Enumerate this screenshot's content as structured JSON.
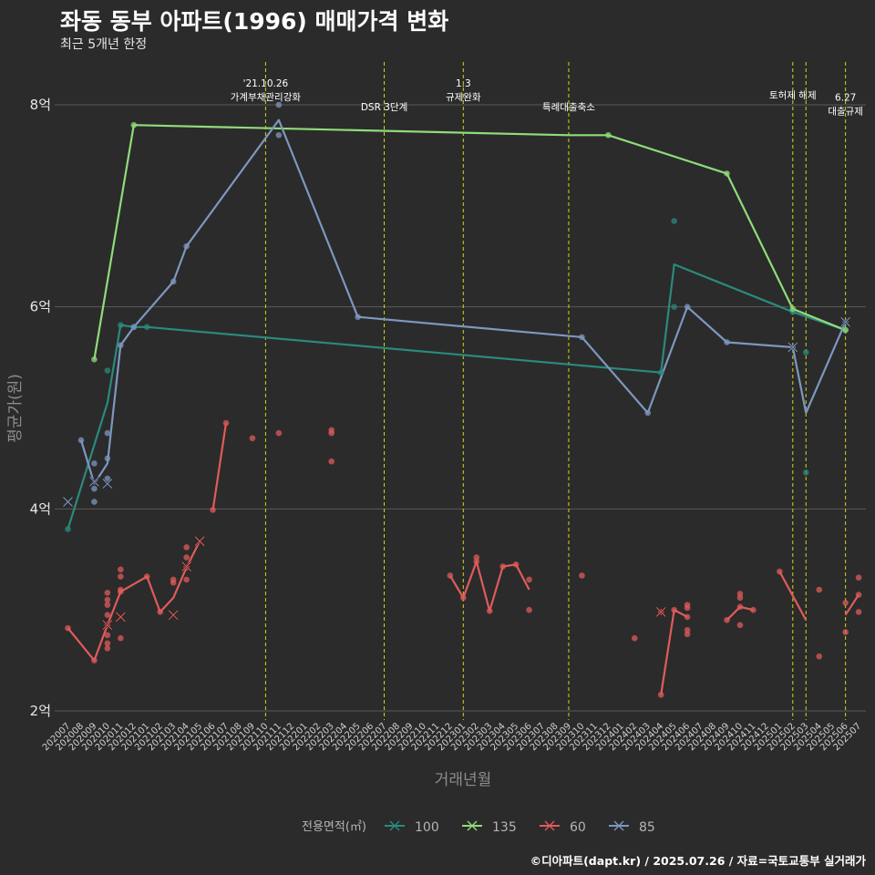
{
  "title": "좌동 동부 아파트(1996) 매매가격 변화",
  "subtitle": "최근 5개년 한정",
  "caption": "©디아파트(dapt.kr) / 2025.07.26 / 자료=국토교통부 실거래가",
  "colors": {
    "background": "#2b2b2b",
    "grid": "#5a5a5a",
    "event_line": "#d4d41c",
    "s100": "#2a8a7e",
    "s135": "#8fdc7a",
    "s60": "#e05b5b",
    "s85": "#7d97bf"
  },
  "chart_data": {
    "type": "line",
    "title": "좌동 동부 아파트(1996) 매매가격 변화",
    "xlabel": "거래년월",
    "ylabel": "평균가(원)",
    "ylim": [
      1.85,
      8.4
    ],
    "y_ticks": [
      {
        "value": 2,
        "label": "2억"
      },
      {
        "value": 4,
        "label": "4억"
      },
      {
        "value": 6,
        "label": "6억"
      },
      {
        "value": 8,
        "label": "8억"
      }
    ],
    "categories": [
      "202007",
      "202008",
      "202009",
      "202010",
      "202011",
      "202012",
      "202101",
      "202102",
      "202103",
      "202104",
      "202105",
      "202106",
      "202107",
      "202108",
      "202109",
      "202110",
      "202111",
      "202112",
      "202201",
      "202202",
      "202203",
      "202204",
      "202205",
      "202206",
      "202207",
      "202208",
      "202209",
      "202210",
      "202211",
      "202212",
      "202301",
      "202302",
      "202303",
      "202304",
      "202305",
      "202306",
      "202307",
      "202308",
      "202309",
      "202310",
      "202311",
      "202312",
      "202401",
      "202402",
      "202403",
      "202404",
      "202405",
      "202406",
      "202407",
      "202408",
      "202409",
      "202410",
      "202411",
      "202412",
      "202501",
      "202502",
      "202503",
      "202504",
      "202505",
      "202506",
      "202507"
    ],
    "legend_title": "전용면적(㎡)",
    "events": [
      {
        "month": "202110",
        "label": "'21.10.26\n가계부채관리강화",
        "level": 0
      },
      {
        "month": "202207",
        "label": "DSR 3단계",
        "level": 1
      },
      {
        "month": "202301",
        "label": "1.3\n규제완화",
        "level": 0
      },
      {
        "month": "202309",
        "label": "특례대출축소",
        "level": 1
      },
      {
        "month": "202502",
        "label": "토허제 해제",
        "level": 0.5
      },
      {
        "month": "202503",
        "label": "",
        "level": 0
      },
      {
        "month": "202506",
        "label": "6.27\n대출규제",
        "level": 0.6
      }
    ],
    "series": [
      {
        "name": "100",
        "color": "#2a8a7e",
        "line": [
          [
            "202007",
            3.8
          ],
          [
            "202010",
            5.05
          ],
          [
            "202011",
            5.82
          ],
          [
            "202012",
            5.8
          ],
          [
            "202101",
            5.8
          ],
          [
            "202404",
            5.35
          ],
          [
            "202405",
            6.42
          ],
          [
            "202502",
            5.95
          ],
          [
            "202506",
            5.77
          ]
        ],
        "points": [
          [
            "202007",
            3.8
          ],
          [
            "202010",
            5.37
          ],
          [
            "202011",
            5.82
          ],
          [
            "202012",
            5.8
          ],
          [
            "202101",
            5.8
          ],
          [
            "202404",
            5.35
          ],
          [
            "202405",
            6.85
          ],
          [
            "202405",
            6.0
          ],
          [
            "202502",
            5.95
          ],
          [
            "202503",
            5.55
          ],
          [
            "202503",
            4.36
          ],
          [
            "202506",
            5.77
          ]
        ],
        "cancelled": []
      },
      {
        "name": "135",
        "color": "#8fdc7a",
        "line": [
          [
            "202009",
            5.48
          ],
          [
            "202012",
            7.8
          ],
          [
            "202309",
            7.7
          ],
          [
            "202312",
            7.7
          ],
          [
            "202409",
            7.32
          ],
          [
            "202502",
            5.98
          ],
          [
            "202506",
            5.77
          ]
        ],
        "points": [
          [
            "202009",
            5.48
          ],
          [
            "202012",
            7.8
          ],
          [
            "202312",
            7.7
          ],
          [
            "202409",
            7.32
          ],
          [
            "202502",
            5.98
          ],
          [
            "202506",
            5.77
          ]
        ],
        "cancelled": []
      },
      {
        "name": "60",
        "color": "#e05b5b",
        "line": [
          [
            [
              "202007",
              2.82
            ],
            [
              "202009",
              2.5
            ],
            [
              "202010",
              2.85
            ],
            [
              "202011",
              3.18
            ],
            [
              "202101",
              3.33
            ],
            [
              "202102",
              2.98
            ],
            [
              "202103",
              3.12
            ],
            [
              "202104",
              3.42
            ],
            [
              "202105",
              3.68
            ]
          ],
          [
            [
              "202106",
              3.99
            ],
            [
              "202107",
              4.85
            ]
          ],
          [
            [
              "202212",
              3.34
            ],
            [
              "202301",
              3.12
            ],
            [
              "202302",
              3.48
            ],
            [
              "202303",
              2.99
            ],
            [
              "202304",
              3.43
            ],
            [
              "202305",
              3.45
            ],
            [
              "202306",
              3.2
            ]
          ],
          [
            [
              "202404",
              2.16
            ],
            [
              "202405",
              3.0
            ],
            [
              "202406",
              2.93
            ]
          ],
          [
            [
              "202409",
              2.9
            ],
            [
              "202410",
              3.03
            ],
            [
              "202411",
              3.0
            ]
          ],
          [
            [
              "202501",
              3.38
            ],
            [
              "202503",
              2.9
            ]
          ],
          [
            [
              "202506",
              2.95
            ],
            [
              "202507",
              3.15
            ]
          ]
        ],
        "points": [
          [
            "202007",
            2.82
          ],
          [
            "202009",
            2.5
          ],
          [
            "202010",
            2.85
          ],
          [
            "202010",
            2.95
          ],
          [
            "202010",
            2.75
          ],
          [
            "202010",
            2.67
          ],
          [
            "202010",
            2.62
          ],
          [
            "202010",
            3.05
          ],
          [
            "202010",
            3.1
          ],
          [
            "202010",
            3.17
          ],
          [
            "202011",
            3.18
          ],
          [
            "202011",
            3.2
          ],
          [
            "202011",
            3.33
          ],
          [
            "202011",
            3.4
          ],
          [
            "202011",
            2.72
          ],
          [
            "202101",
            3.33
          ],
          [
            "202102",
            2.98
          ],
          [
            "202103",
            3.3
          ],
          [
            "202103",
            3.27
          ],
          [
            "202104",
            3.42
          ],
          [
            "202104",
            3.52
          ],
          [
            "202104",
            3.62
          ],
          [
            "202104",
            3.3
          ],
          [
            "202106",
            3.99
          ],
          [
            "202107",
            4.85
          ],
          [
            "202109",
            4.7
          ],
          [
            "202111",
            4.75
          ],
          [
            "202203",
            4.75
          ],
          [
            "202203",
            4.78
          ],
          [
            "202203",
            4.47
          ],
          [
            "202212",
            3.34
          ],
          [
            "202301",
            3.12
          ],
          [
            "202302",
            3.48
          ],
          [
            "202302",
            3.52
          ],
          [
            "202303",
            2.99
          ],
          [
            "202304",
            3.43
          ],
          [
            "202305",
            3.45
          ],
          [
            "202306",
            3.3
          ],
          [
            "202306",
            3.0
          ],
          [
            "202310",
            3.34
          ],
          [
            "202402",
            2.72
          ],
          [
            "202404",
            2.16
          ],
          [
            "202404",
            2.98
          ],
          [
            "202405",
            3.0
          ],
          [
            "202406",
            2.93
          ],
          [
            "202406",
            2.8
          ],
          [
            "202406",
            2.76
          ],
          [
            "202406",
            3.05
          ],
          [
            "202406",
            3.02
          ],
          [
            "202409",
            2.9
          ],
          [
            "202410",
            3.03
          ],
          [
            "202410",
            3.12
          ],
          [
            "202410",
            3.16
          ],
          [
            "202410",
            2.85
          ],
          [
            "202411",
            3.0
          ],
          [
            "202501",
            3.38
          ],
          [
            "202504",
            3.2
          ],
          [
            "202504",
            2.54
          ],
          [
            "202506",
            2.78
          ],
          [
            "202506",
            3.07
          ],
          [
            "202507",
            3.15
          ],
          [
            "202507",
            3.32
          ],
          [
            "202507",
            2.98
          ]
        ],
        "cancelled": [
          [
            "202010",
            2.85
          ],
          [
            "202011",
            2.93
          ],
          [
            "202103",
            2.95
          ],
          [
            "202104",
            3.43
          ],
          [
            "202105",
            3.68
          ],
          [
            "202404",
            2.98
          ]
        ]
      },
      {
        "name": "85",
        "color": "#7d97bf",
        "line": [
          [
            "202008",
            4.68
          ],
          [
            "202009",
            4.25
          ],
          [
            "202010",
            4.45
          ],
          [
            "202011",
            5.62
          ],
          [
            "202012",
            5.8
          ],
          [
            "202103",
            6.25
          ],
          [
            "202104",
            6.6
          ],
          [
            "202111",
            7.85
          ],
          [
            "202205",
            5.9
          ],
          [
            "202310",
            5.7
          ],
          [
            "202403",
            4.95
          ],
          [
            "202406",
            6.0
          ],
          [
            "202409",
            5.65
          ],
          [
            "202502",
            5.6
          ],
          [
            "202503",
            4.95
          ],
          [
            "202506",
            5.85
          ]
        ],
        "points": [
          [
            "202008",
            4.68
          ],
          [
            "202009",
            4.45
          ],
          [
            "202009",
            4.2
          ],
          [
            "202009",
            4.07
          ],
          [
            "202010",
            4.3
          ],
          [
            "202010",
            4.5
          ],
          [
            "202010",
            4.75
          ],
          [
            "202011",
            5.62
          ],
          [
            "202012",
            5.8
          ],
          [
            "202103",
            6.25
          ],
          [
            "202104",
            6.6
          ],
          [
            "202111",
            8.0
          ],
          [
            "202111",
            7.7
          ],
          [
            "202205",
            5.9
          ],
          [
            "202310",
            5.7
          ],
          [
            "202403",
            4.95
          ],
          [
            "202406",
            6.0
          ],
          [
            "202409",
            5.65
          ],
          [
            "202502",
            5.6
          ],
          [
            "202506",
            5.85
          ]
        ],
        "cancelled": [
          [
            "202007",
            4.07
          ],
          [
            "202009",
            4.27
          ],
          [
            "202010",
            4.25
          ],
          [
            "202502",
            5.6
          ],
          [
            "202506",
            5.85
          ]
        ]
      }
    ]
  }
}
